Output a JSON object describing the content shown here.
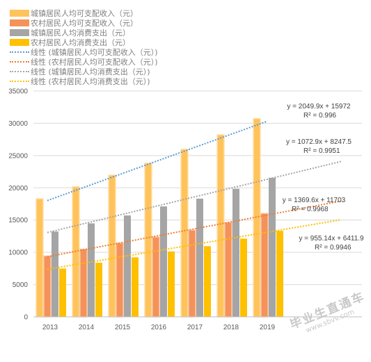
{
  "chart_data": {
    "type": "bar",
    "categories": [
      "2013",
      "2014",
      "2015",
      "2016",
      "2017",
      "2018",
      "2019"
    ],
    "series": [
      {
        "name": "城镇居民人均可支配收入（元）",
        "color": "#FFC35C",
        "values": [
          18311,
          20167,
          21966,
          23821,
          25974,
          28228,
          30733
        ]
      },
      {
        "name": "农村居民人均可支配收入（元）",
        "color": "#F4925A",
        "values": [
          9430,
          10489,
          11422,
          12363,
          13432,
          14617,
          16021
        ]
      },
      {
        "name": "城镇居民人均消费支出（元）",
        "color": "#A5A5A5",
        "values": [
          13220,
          14491,
          15712,
          17111,
          18322,
          19853,
          21559
        ]
      },
      {
        "name": "农村居民人均消费支出（元）",
        "color": "#FFC000",
        "values": [
          7485,
          8383,
          9223,
          10130,
          10955,
          12124,
          13328
        ]
      }
    ],
    "trendlines": [
      {
        "name": "线性 (城镇居民人均可支配收入（元）)",
        "color": "#5B9BD5",
        "slope": 2049.9,
        "intercept": 15972,
        "equation": "y = 2049.9x + 15972",
        "r2": "R² = 0.996"
      },
      {
        "name": "线性 (农村居民人均可支配收入（元）)",
        "color": "#ED7D31",
        "slope": 1072.9,
        "intercept": 8247.5,
        "equation": "y = 1072.9x + 8247.5",
        "r2": "R² = 0.9951"
      },
      {
        "name": "线性 (城镇居民人均消费支出（元）)",
        "color": "#A5A5A5",
        "slope": 1369.6,
        "intercept": 11703,
        "equation": "y = 1369.6x + 11703",
        "r2": "R² = 0.9968"
      },
      {
        "name": "线性 (农村居民人均消费支出（元）)",
        "color": "#FFC000",
        "slope": 955.14,
        "intercept": 6411.9,
        "equation": "y = 955.14x + 6411.9",
        "r2": "R² = 0.9946"
      }
    ],
    "ylim": [
      0,
      35000
    ],
    "yticks": [
      "0",
      "5000",
      "10000",
      "15000",
      "20000",
      "25000",
      "30000",
      "35000"
    ],
    "xlabel": "",
    "ylabel": "",
    "grid": true,
    "legend_position": "top-left"
  },
  "watermark": {
    "text": "毕业生直通车",
    "url": "www.sbvv.com"
  }
}
